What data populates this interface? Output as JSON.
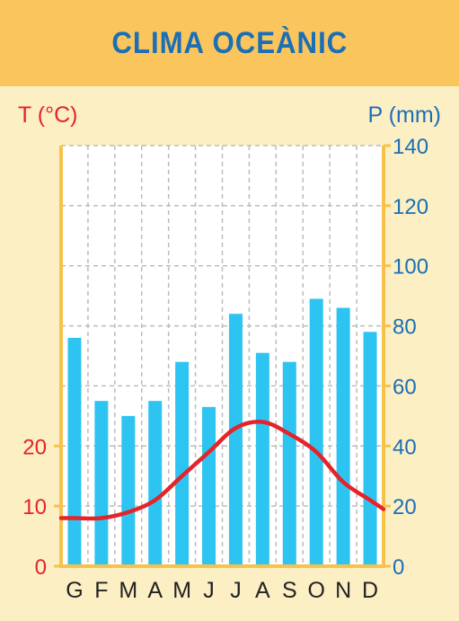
{
  "title": "CLIMA OCEÀNIC",
  "left_axis_title": "T (°C)",
  "right_axis_title": "P (mm)",
  "colors": {
    "background": "#fdefc4",
    "header": "#fbc55e",
    "title": "#1b6fb6",
    "plot_background": "#ffffff",
    "plot_border": "#f6c24b",
    "bars": "#2ec4f1",
    "temperature_line": "#e4232a",
    "precipitation_axis": "#1b6fb6",
    "temperature_axis": "#e4232a",
    "grid": "#bcbcbc"
  },
  "chart_data": {
    "type": "bar",
    "title": "CLIMA OCEÀNIC",
    "categories": [
      "G",
      "F",
      "M",
      "A",
      "M",
      "J",
      "J",
      "A",
      "S",
      "O",
      "N",
      "D"
    ],
    "precipitation": {
      "axis": "right",
      "label": "P (mm)",
      "ylim": [
        0,
        140
      ],
      "ticks": [
        0,
        20,
        40,
        60,
        80,
        100,
        120,
        140
      ],
      "values": [
        76,
        55,
        50,
        55,
        68,
        53,
        84,
        71,
        68,
        89,
        86,
        78
      ]
    },
    "temperature": {
      "axis": "left",
      "label": "T (°C)",
      "ylim": [
        0,
        70
      ],
      "ticks": [
        0,
        10,
        20
      ],
      "values": [
        8,
        8,
        9,
        11,
        15,
        19,
        23,
        24,
        22,
        19,
        14,
        11
      ],
      "line_style": "smooth"
    },
    "grid": true
  }
}
